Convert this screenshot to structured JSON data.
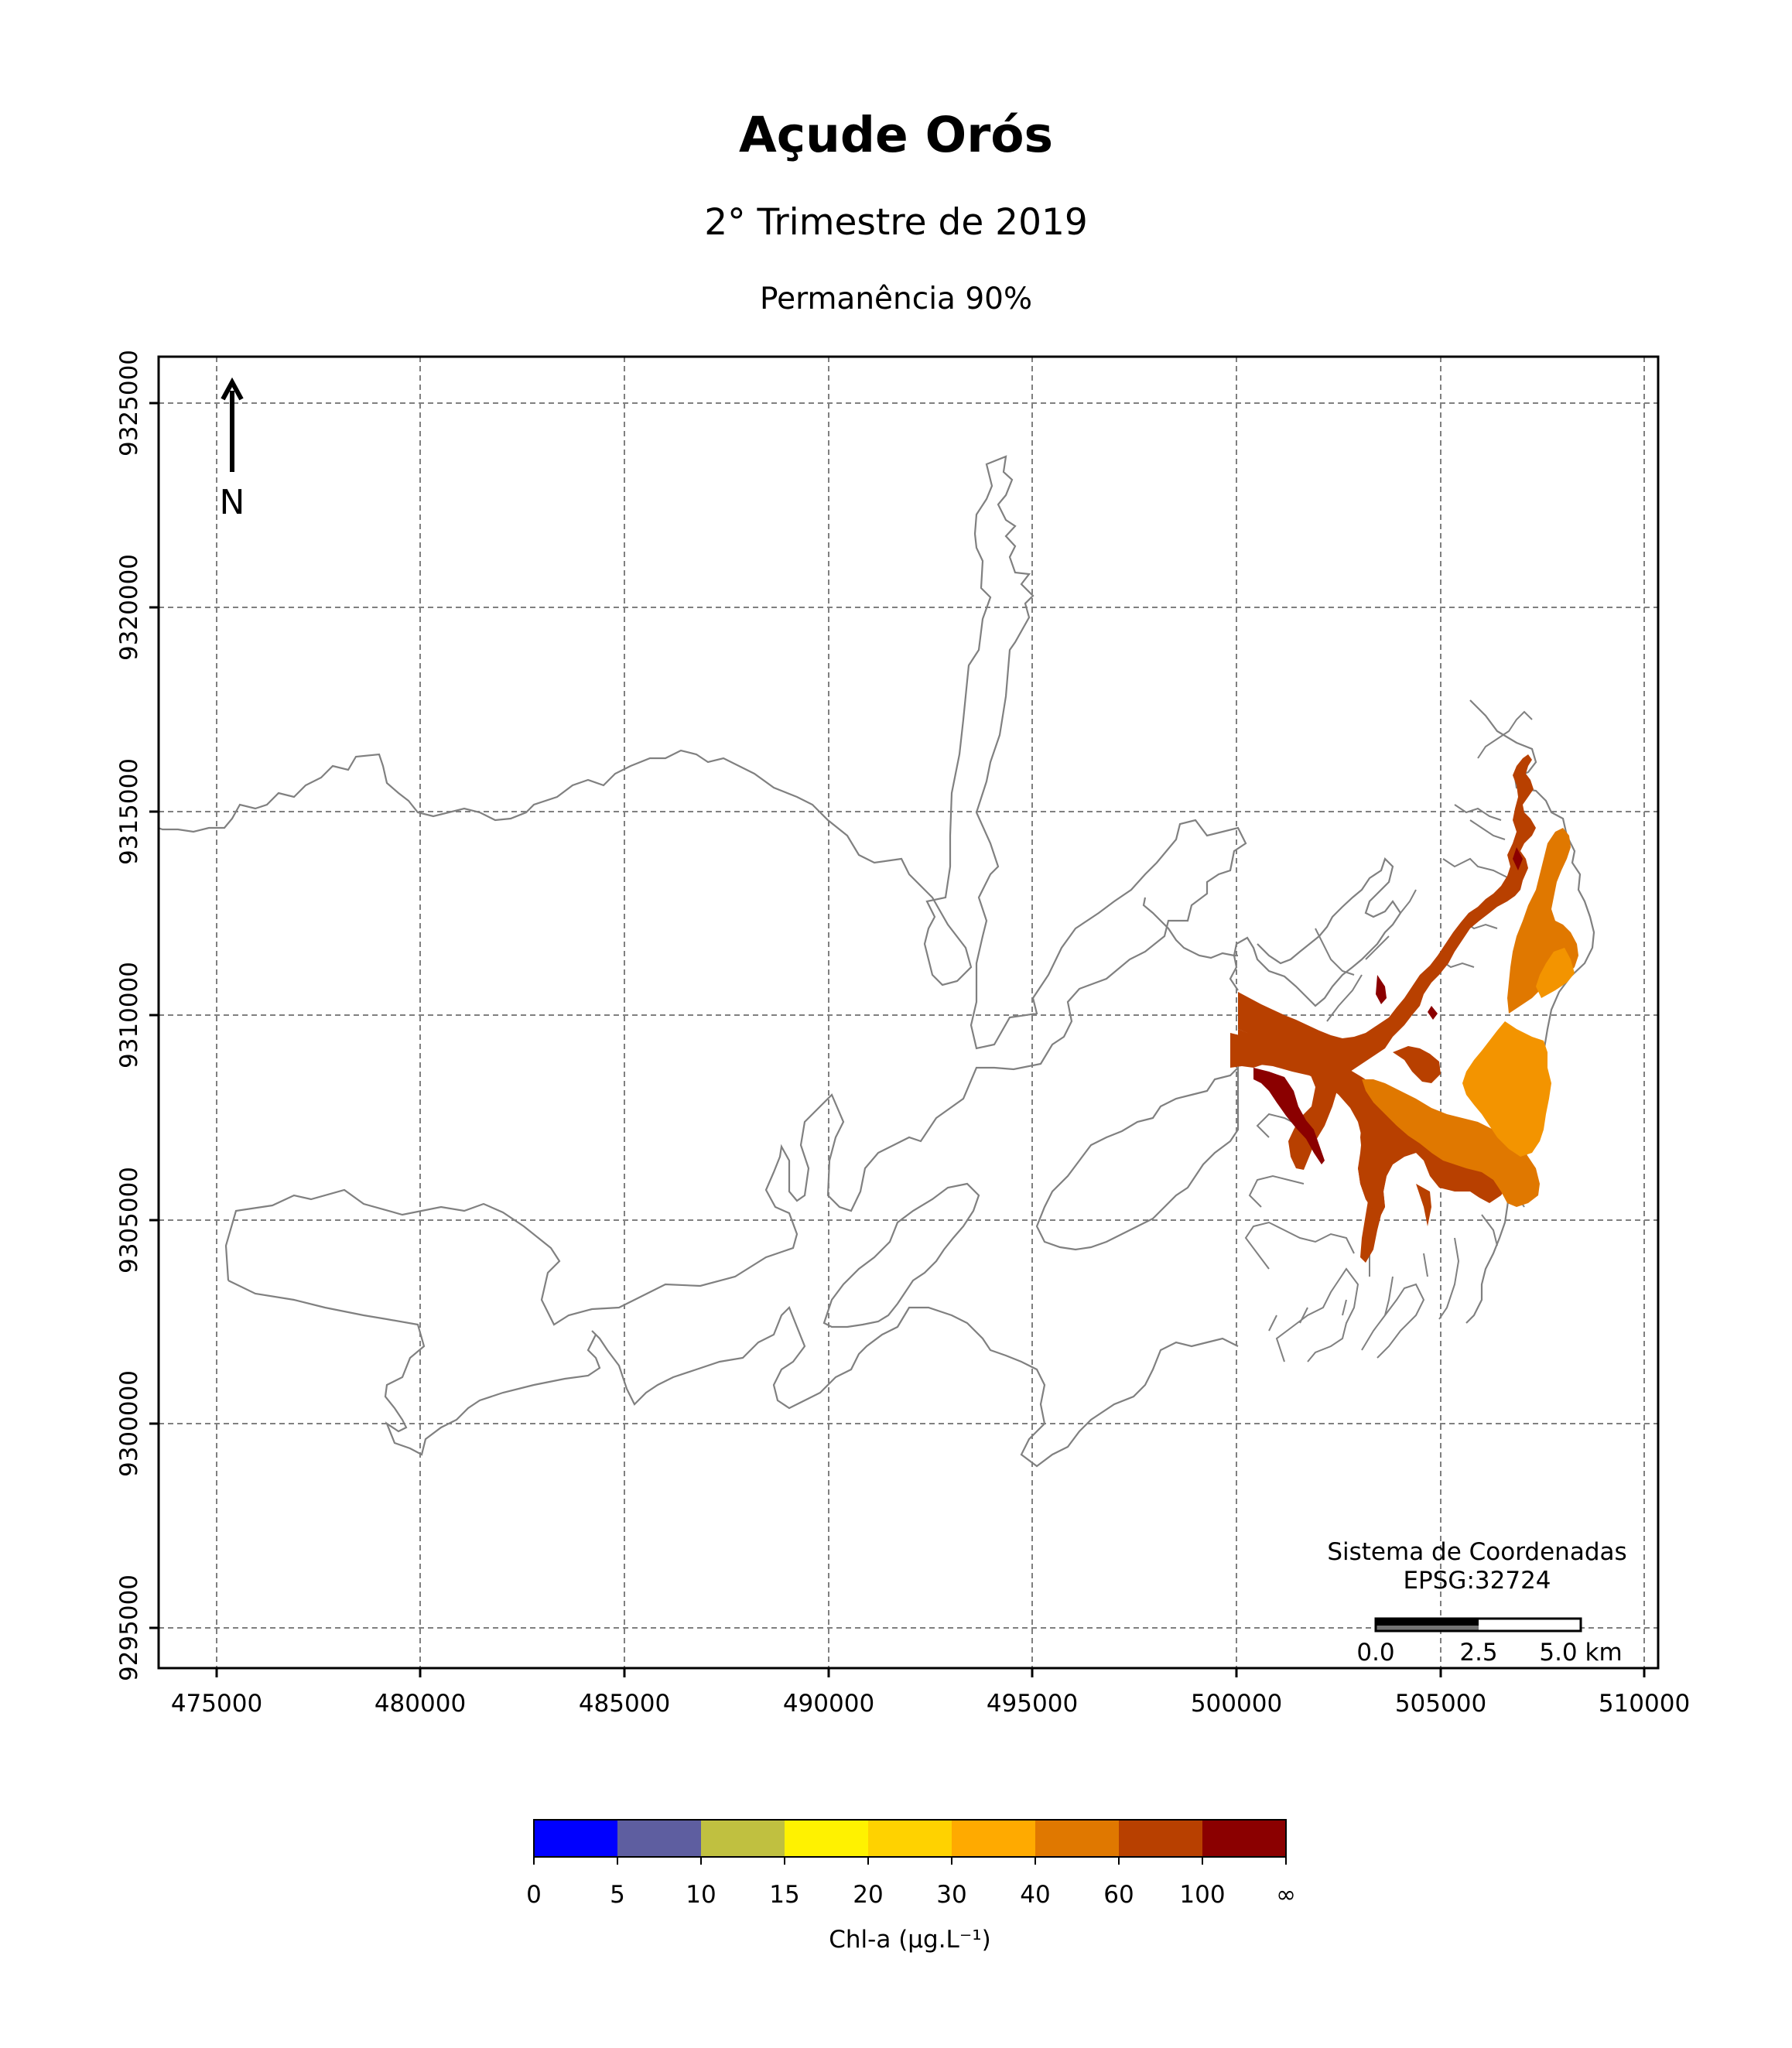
{
  "title": "Açude Orós",
  "subtitle": "2° Trimestre de 2019",
  "subsubtitle": "Permanência 90%",
  "north_arrow": {
    "label": "N",
    "icon": "north-arrow-icon"
  },
  "axes": {
    "x_ticks": [
      "475000",
      "480000",
      "485000",
      "490000",
      "495000",
      "500000",
      "505000",
      "510000"
    ],
    "y_ticks": [
      "9325000",
      "9320000",
      "9315000",
      "9310000",
      "9305000",
      "9300000",
      "9295000"
    ],
    "xlim": [
      473600,
      510350
    ],
    "ylim": [
      9293950,
      9326100
    ],
    "grid": true
  },
  "crs": {
    "line1": "Sistema de Coordenadas",
    "line2": "EPSG:32724"
  },
  "scalebar": {
    "labels": [
      "0.0",
      "2.5",
      "5.0 km"
    ]
  },
  "colorbar": {
    "label": "Chl-a (μg.L⁻¹)",
    "ticks": [
      "0",
      "5",
      "10",
      "15",
      "20",
      "30",
      "40",
      "60",
      "100",
      "∞"
    ],
    "colors": [
      "#0000ff",
      "#5e5ea0",
      "#c0c040",
      "#fff200",
      "#ffd200",
      "#ffaa00",
      "#e07800",
      "#b84000",
      "#8b0000"
    ]
  },
  "colors": {
    "outline": "#808080",
    "chl_60_100": "#b84000",
    "chl_40_60": "#e07800",
    "chl_30_40": "#ffaa00",
    "chl_100_inf": "#8b0000"
  }
}
